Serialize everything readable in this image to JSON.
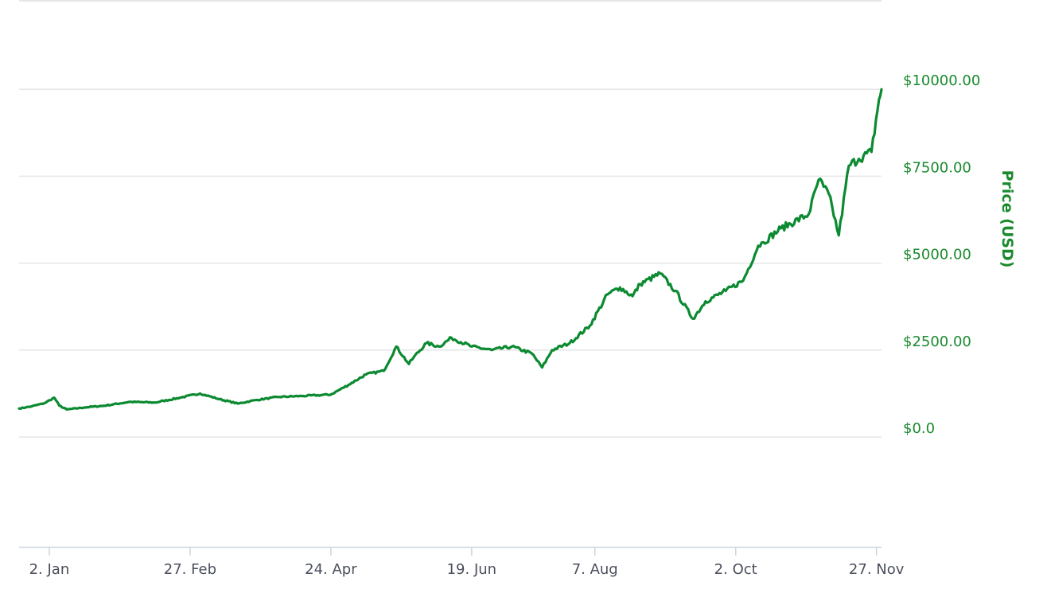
{
  "chart_data": {
    "type": "line",
    "title": "",
    "xlabel": "",
    "ylabel": "Price (USD)",
    "ylim": [
      0,
      12000
    ],
    "y_ticks": [
      0,
      2500,
      5000,
      7500,
      10000
    ],
    "y_tick_labels": [
      "$0.0",
      "$2500.00",
      "$5000.00",
      "$7500.00",
      "$10000.00"
    ],
    "x_tick_labels": [
      "2. Jan",
      "27. Feb",
      "24. Apr",
      "19. Jun",
      "7. Aug",
      "2. Oct",
      "27. Nov"
    ],
    "x_ticks": [
      "2017-01-02",
      "2017-02-27",
      "2017-04-24",
      "2017-06-19",
      "2017-08-07",
      "2017-10-02",
      "2017-11-27"
    ],
    "x_range": [
      "2016-12-21",
      "2017-11-29"
    ],
    "grid": true,
    "legend": "none",
    "line_color": "#0b8a31",
    "series": [
      {
        "x": [
          "2016-12-21",
          "2016-12-26",
          "2016-12-31",
          "2017-01-04",
          "2017-01-06",
          "2017-01-09",
          "2017-01-16",
          "2017-01-24",
          "2017-02-03",
          "2017-02-13",
          "2017-02-23",
          "2017-03-03",
          "2017-03-10",
          "2017-03-18",
          "2017-03-25",
          "2017-04-03",
          "2017-04-13",
          "2017-04-24",
          "2017-05-01",
          "2017-05-08",
          "2017-05-15",
          "2017-05-20",
          "2017-05-25",
          "2017-05-27",
          "2017-06-01",
          "2017-06-06",
          "2017-06-11",
          "2017-06-19",
          "2017-06-27",
          "2017-07-05",
          "2017-07-13",
          "2017-07-17",
          "2017-07-21",
          "2017-07-28",
          "2017-08-05",
          "2017-08-12",
          "2017-08-17",
          "2017-08-22",
          "2017-08-25",
          "2017-09-02",
          "2017-09-08",
          "2017-09-15",
          "2017-09-20",
          "2017-09-28",
          "2017-10-05",
          "2017-10-11",
          "2017-10-13",
          "2017-10-20",
          "2017-10-31",
          "2017-11-04",
          "2017-11-06",
          "2017-11-08",
          "2017-11-12",
          "2017-11-16",
          "2017-11-20",
          "2017-11-25",
          "2017-11-28",
          "2017-11-29"
        ],
        "y": [
          820,
          880,
          970,
          1130,
          900,
          790,
          850,
          900,
          1010,
          990,
          1130,
          1250,
          1100,
          960,
          1060,
          1150,
          1180,
          1220,
          1500,
          1800,
          1900,
          2600,
          2100,
          2300,
          2700,
          2600,
          2850,
          2600,
          2500,
          2600,
          2400,
          2000,
          2500,
          2700,
          3200,
          4100,
          4300,
          4050,
          4400,
          4700,
          4200,
          3400,
          3900,
          4200,
          4500,
          5500,
          5600,
          6000,
          6400,
          7400,
          7200,
          7000,
          5800,
          7800,
          8000,
          8200,
          9700,
          10000
        ]
      }
    ]
  }
}
